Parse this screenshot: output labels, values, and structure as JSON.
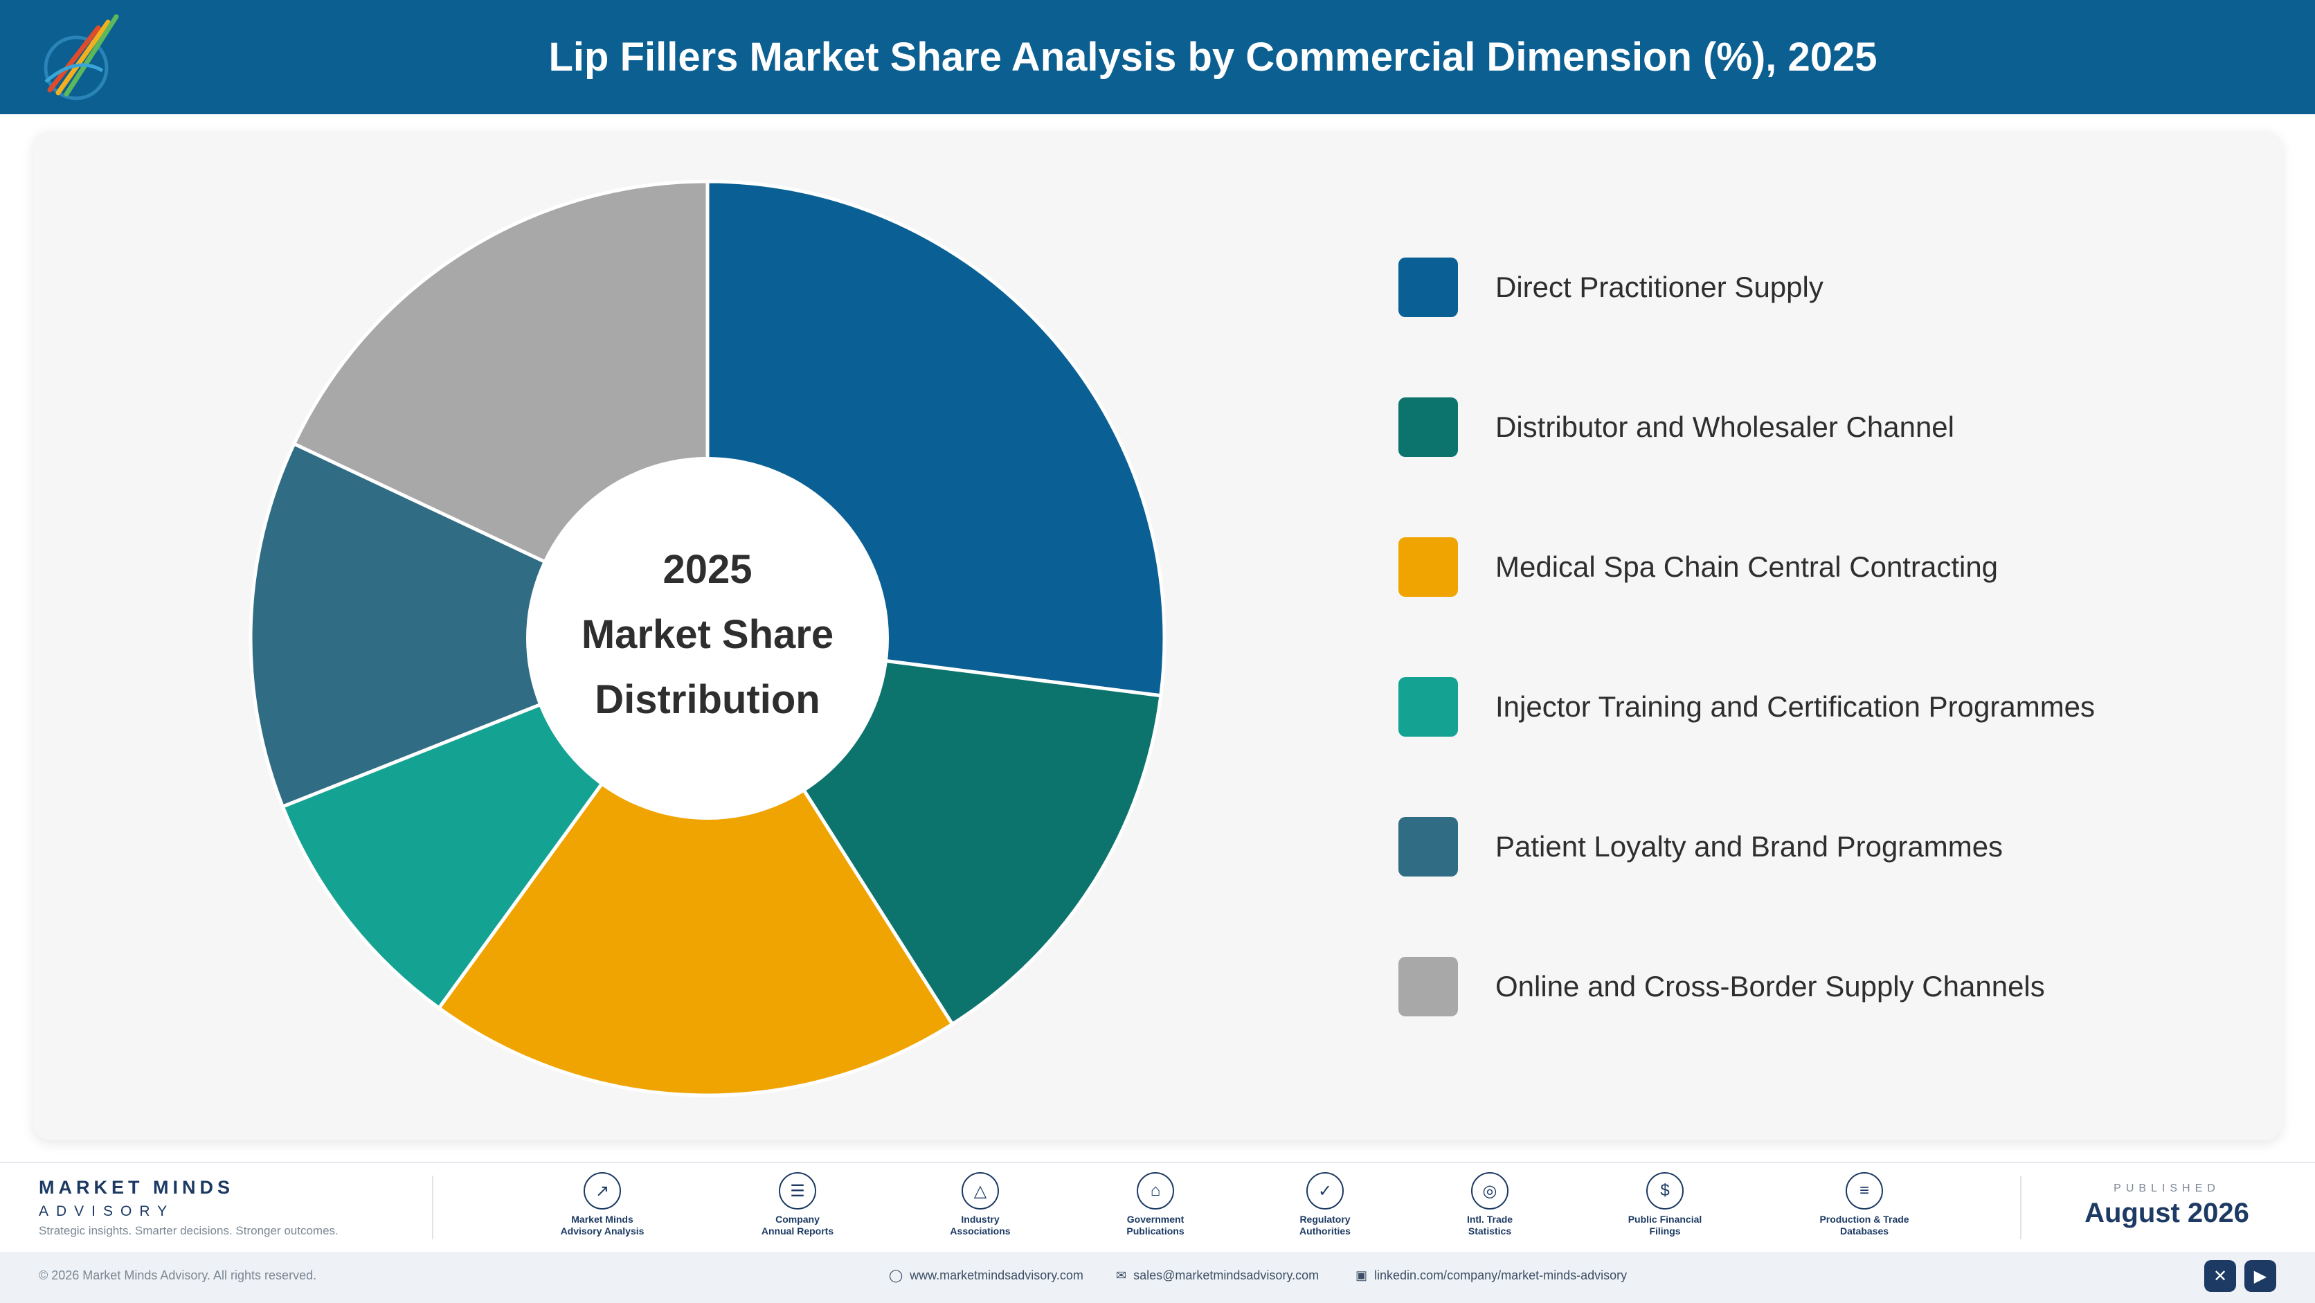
{
  "header": {
    "title": "Lip Fillers Market Share Analysis by Commercial Dimension (%), 2025",
    "logo_icon": "market-minds-logo"
  },
  "chart_data": {
    "type": "pie",
    "variant": "donut",
    "title": "Lip Fillers Market Share Analysis by Commercial Dimension (%), 2025",
    "center_label": [
      "2025",
      "Market Share",
      "Distribution"
    ],
    "legend_position": "right",
    "slices": [
      {
        "label": "Direct Practitioner Supply",
        "value": 27,
        "color": "#0a6094"
      },
      {
        "label": "Distributor and Wholesaler Channel",
        "value": 14,
        "color": "#0c736d"
      },
      {
        "label": "Medical Spa Chain Central Contracting",
        "value": 19,
        "color": "#f0a402"
      },
      {
        "label": "Injector Training and Certification Programmes",
        "value": 9,
        "color": "#14a392"
      },
      {
        "label": "Patient Loyalty and Brand Programmes",
        "value": 13,
        "color": "#306d84"
      },
      {
        "label": "Online and Cross-Border Supply Channels",
        "value": 18,
        "color": "#a8a8a8"
      }
    ]
  },
  "footer": {
    "brand_name": "MARKET MINDS",
    "brand_sub": "ADVISORY",
    "tagline": "Strategic insights. Smarter decisions. Stronger outcomes.",
    "sources": [
      {
        "line1": "Market Minds",
        "line2": "Advisory Analysis",
        "icon": "trend-line-icon"
      },
      {
        "line1": "Company",
        "line2": "Annual Reports",
        "icon": "document-icon"
      },
      {
        "line1": "Industry",
        "line2": "Associations",
        "icon": "network-icon"
      },
      {
        "line1": "Government",
        "line2": "Publications",
        "icon": "government-building-icon"
      },
      {
        "line1": "Regulatory",
        "line2": "Authorities",
        "icon": "shield-check-icon"
      },
      {
        "line1": "Intl. Trade",
        "line2": "Statistics",
        "icon": "globe-icon"
      },
      {
        "line1": "Public Financial",
        "line2": "Filings",
        "icon": "currency-icon"
      },
      {
        "line1": "Production & Trade",
        "line2": "Databases",
        "icon": "database-icon"
      }
    ],
    "published_label": "PUBLISHED",
    "published_date": "August 2026",
    "copyright": "© 2026 Market Minds Advisory. All rights reserved.",
    "website": "www.marketmindsadvisory.com",
    "email": "sales@marketmindsadvisory.com",
    "linkedin": "linkedin.com/company/market-minds-advisory",
    "social": [
      "x-icon",
      "youtube-icon"
    ]
  }
}
